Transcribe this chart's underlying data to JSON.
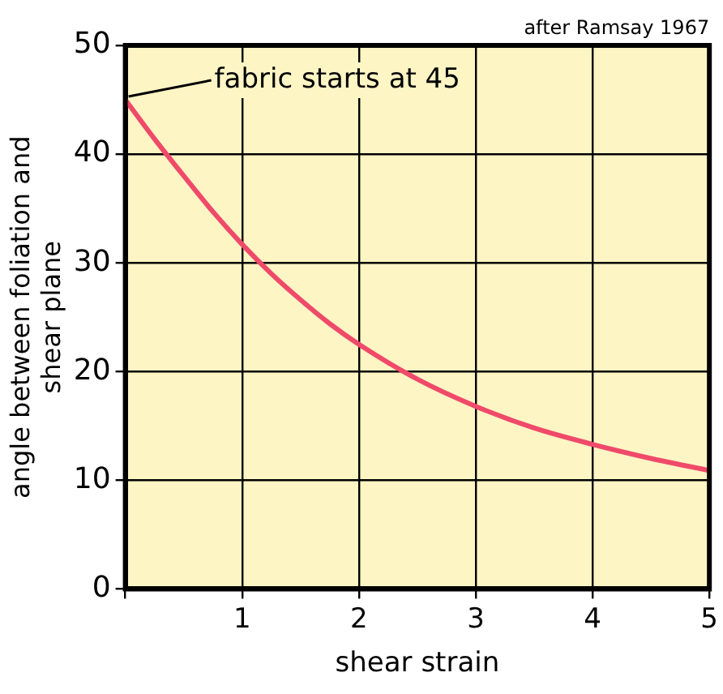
{
  "chart_data": {
    "type": "line",
    "xlabel": "shear strain",
    "ylabel": "angle between foliation and shear plane",
    "annotations": [
      "after Ramsay 1967",
      {
        "text": "fabric starts at 45",
        "x": 0,
        "y": 45
      }
    ],
    "x": [
      0,
      0.25,
      0.5,
      0.75,
      1,
      1.25,
      1.5,
      1.75,
      2,
      2.5,
      3,
      3.5,
      4,
      4.5,
      5
    ],
    "series": [
      {
        "color": "#f04a6a",
        "values": [
          45,
          41.4,
          38,
          34.7,
          31.7,
          29,
          26.6,
          24.4,
          22.5,
          19.3,
          16.8,
          14.8,
          13.3,
          12,
          10.9
        ]
      }
    ],
    "xlim": [
      0,
      5
    ],
    "xticks": [
      {
        "value": 0,
        "label": null
      },
      1,
      2,
      3,
      4,
      5
    ],
    "ylim": [
      0,
      50
    ],
    "yticks": [
      0,
      10,
      20,
      30,
      40,
      50
    ],
    "grid": true,
    "legend": false,
    "marker": "none",
    "line_style": "solid"
  }
}
